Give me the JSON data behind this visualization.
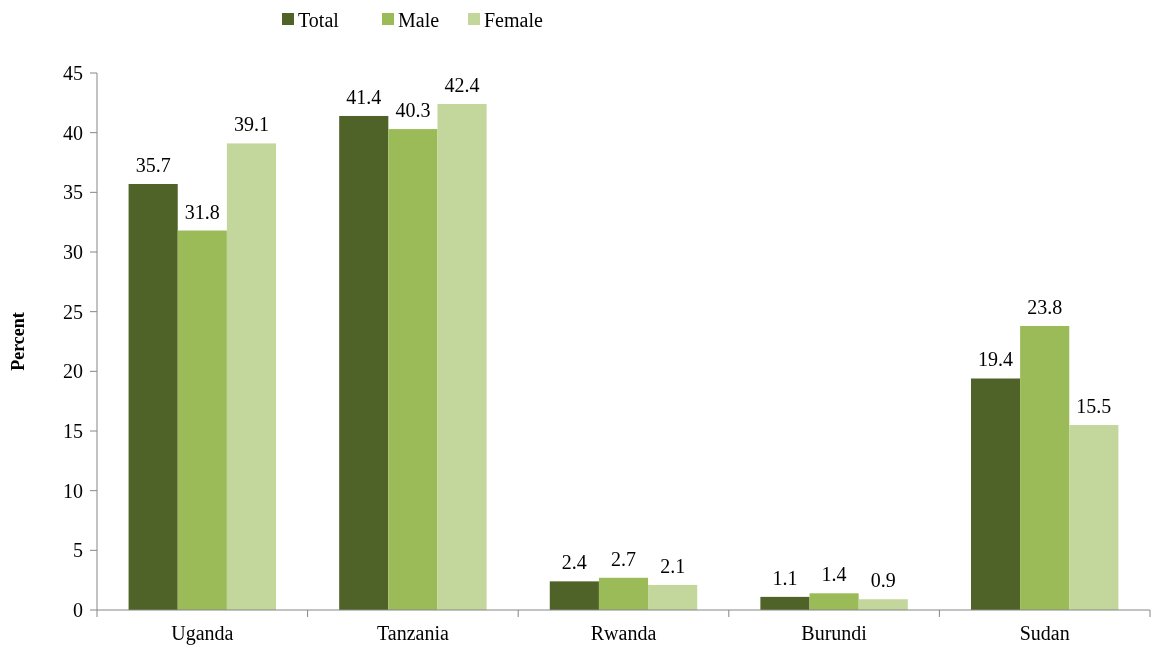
{
  "chart_data": {
    "type": "bar",
    "ylabel": "Percent",
    "categories": [
      "Uganda",
      "Tanzania",
      "Rwanda",
      "Burundi",
      "Sudan"
    ],
    "series": [
      {
        "name": "Total",
        "color": "#4f6228",
        "values": [
          35.7,
          41.4,
          2.4,
          1.1,
          19.4
        ]
      },
      {
        "name": "Male",
        "color": "#9bbb59",
        "values": [
          31.8,
          40.3,
          2.7,
          1.4,
          23.8
        ]
      },
      {
        "name": "Female",
        "color": "#c3d69b",
        "values": [
          39.1,
          42.4,
          2.1,
          0.9,
          15.5
        ]
      }
    ],
    "ylim": [
      0,
      45
    ],
    "yticks": [
      0,
      5,
      10,
      15,
      20,
      25,
      30,
      35,
      40,
      45
    ],
    "grid": false,
    "legend": "top",
    "data_labels": true
  }
}
